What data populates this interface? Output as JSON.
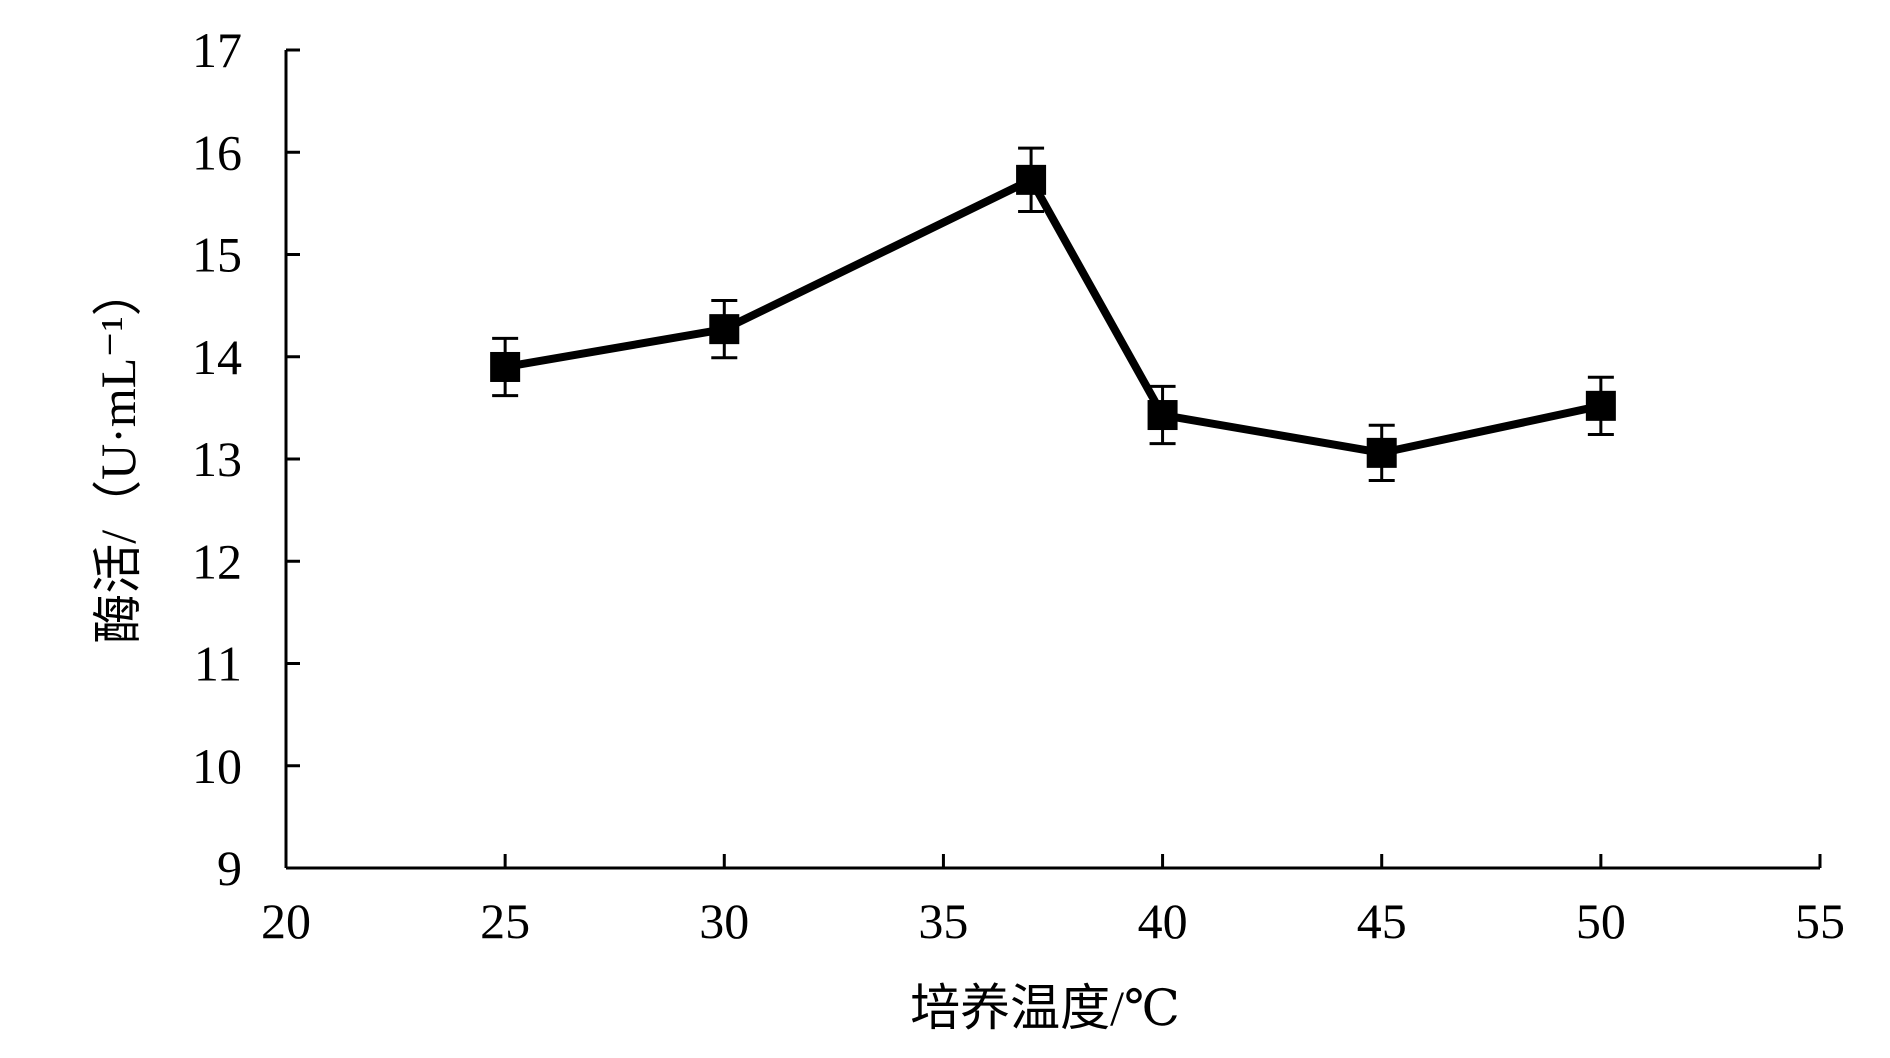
{
  "chart_data": {
    "type": "line",
    "title": "",
    "xlabel": "培养温度/℃",
    "ylabel": "酶活/（U·mL⁻¹）",
    "xlim": [
      20,
      55
    ],
    "ylim": [
      9,
      17
    ],
    "x_ticks": [
      20,
      25,
      30,
      35,
      40,
      45,
      50,
      55
    ],
    "y_ticks": [
      9,
      10,
      11,
      12,
      13,
      14,
      15,
      16,
      17
    ],
    "x_tick_labels": [
      "20",
      "25",
      "30",
      "35",
      "40",
      "45",
      "50",
      "55"
    ],
    "y_tick_labels": [
      "9",
      "10",
      "11",
      "12",
      "13",
      "14",
      "15",
      "16",
      "17"
    ],
    "grid": false,
    "legend": "none",
    "series": [
      {
        "x": [
          25,
          30,
          37,
          40,
          45,
          50
        ],
        "y": [
          13.9,
          14.27,
          15.73,
          13.43,
          13.06,
          13.52
        ],
        "error": [
          0.28,
          0.28,
          0.31,
          0.28,
          0.27,
          0.28
        ],
        "marker": "square",
        "color": "#000000"
      }
    ]
  }
}
